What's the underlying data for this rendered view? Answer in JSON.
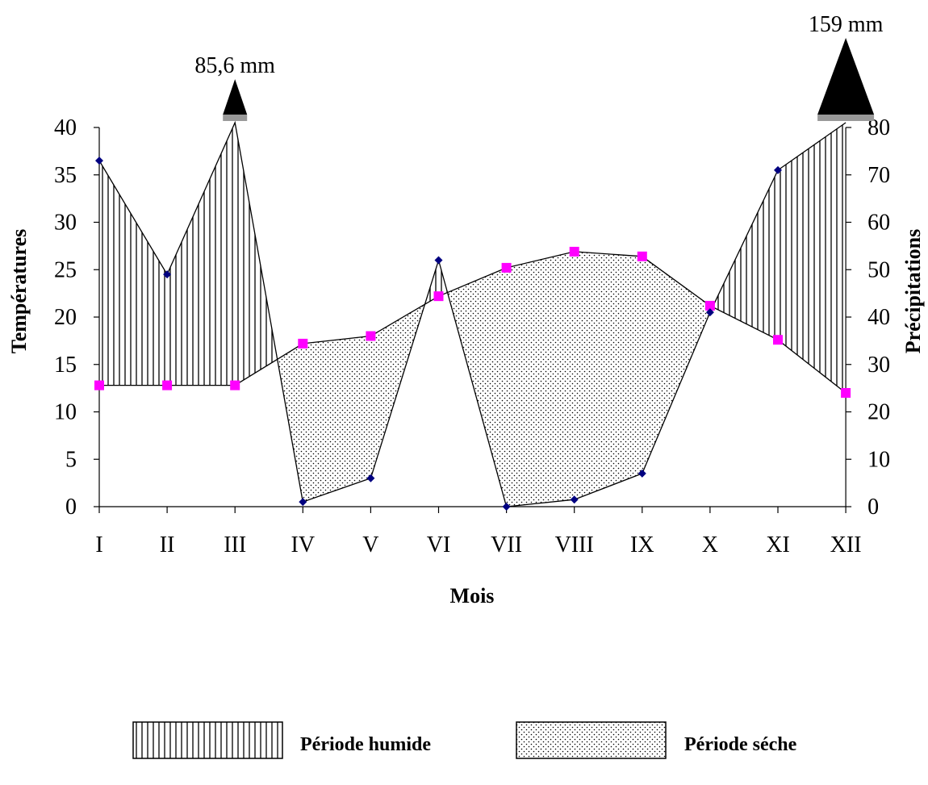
{
  "chart_data": {
    "type": "line",
    "title": "",
    "xlabel": "Mois",
    "ylabel_left": "Températures",
    "ylabel_right": "Précipitations",
    "categories": [
      "I",
      "II",
      "III",
      "IV",
      "V",
      "VI",
      "VII",
      "VIII",
      "IX",
      "X",
      "XI",
      "XII"
    ],
    "ylim_left": [
      0,
      40
    ],
    "ylim_right": [
      0,
      80
    ],
    "yticks_left": [
      0,
      5,
      10,
      15,
      20,
      25,
      30,
      35,
      40
    ],
    "yticks_right": [
      0,
      10,
      20,
      30,
      40,
      50,
      60,
      70,
      80
    ],
    "series": [
      {
        "name": "",
        "axis": "left",
        "marker": "square",
        "color": "#FF00FF",
        "values": [
          12.8,
          12.8,
          12.8,
          17.2,
          18.0,
          22.2,
          25.2,
          26.9,
          26.4,
          21.2,
          17.6,
          12.0
        ]
      },
      {
        "name": "",
        "axis": "right",
        "marker": "diamond",
        "color": "#000080",
        "values": [
          73,
          49,
          85.6,
          1,
          6,
          52,
          0,
          1.5,
          7,
          41,
          71,
          159
        ]
      }
    ],
    "annotations": [
      {
        "text": "85,6 mm",
        "category": "III",
        "value": 85.6
      },
      {
        "text": "159 mm",
        "category": "XII",
        "value": 159
      }
    ],
    "legend": [
      {
        "label": "Période humide",
        "pattern": "vertical-hatch"
      },
      {
        "label": "Période séche",
        "pattern": "dots"
      }
    ],
    "legend_position": "bottom",
    "grid": false
  }
}
